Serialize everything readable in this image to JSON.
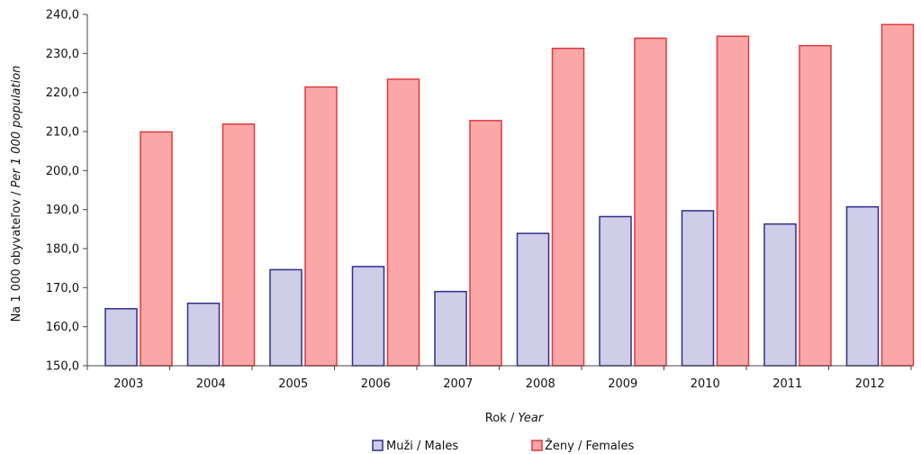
{
  "chart_data": {
    "type": "bar",
    "categories": [
      "2003",
      "2004",
      "2005",
      "2006",
      "2007",
      "2008",
      "2009",
      "2010",
      "2011",
      "2012"
    ],
    "series": [
      {
        "name": "Muži / Males",
        "values": [
          164.6,
          166.0,
          174.6,
          175.4,
          169.0,
          183.9,
          188.2,
          189.7,
          186.3,
          190.7
        ],
        "fill": "#cfcde8",
        "stroke": "#2e2e8c"
      },
      {
        "name": "Ženy / Females",
        "values": [
          209.9,
          211.9,
          221.4,
          223.4,
          212.8,
          231.3,
          233.9,
          234.4,
          232.0,
          237.4
        ],
        "fill": "#fba7a8",
        "stroke": "#e0393c"
      }
    ],
    "y_ticks": [
      "150,0",
      "160,0",
      "170,0",
      "180,0",
      "190,0",
      "200,0",
      "210,0",
      "220,0",
      "230,0",
      "240,0"
    ],
    "ylim": [
      150,
      240
    ],
    "xlabel": "Rok",
    "xlabel_italic": "Year",
    "ylabel": "Na 1 000 obyvateľov",
    "ylabel_italic": "Per 1 000 population",
    "legend_position": "bottom",
    "grid": false,
    "legend": {
      "males": "Muži / Males",
      "females": "Ženy / Females"
    }
  }
}
